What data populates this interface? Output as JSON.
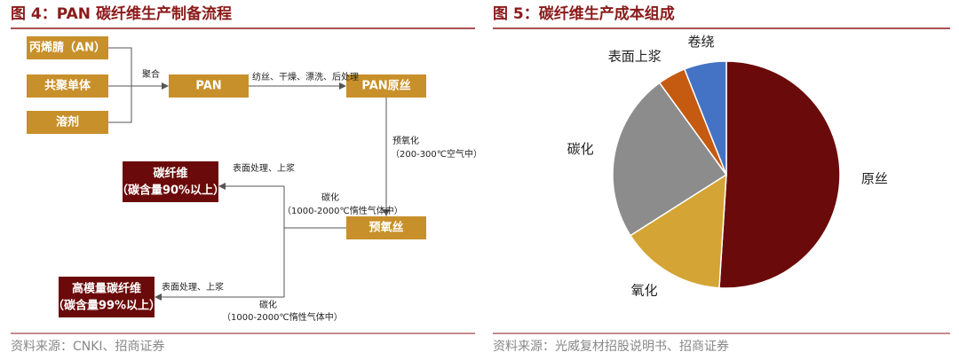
{
  "figure4": {
    "title": "图 4：PAN 碳纤维生产制备流程",
    "nodes": [
      "丙烯腈（AN）",
      "共聚单体",
      "溶剂",
      "PAN",
      "PAN原丝",
      "预氧丝"
    ],
    "products": [
      {
        "label": "碳纤维",
        "sublabel": "（碳含量90%以上）"
      },
      {
        "label": "高模量碳纤维",
        "sublabel": "（碳含量99%以上）"
      }
    ],
    "edge_labels": [
      "聚合",
      "纺丝、干燥、漂洗、后处理",
      "预氧化",
      "（200-300℃空气中）",
      "表面处理、上浆",
      "碳化",
      "（1000-2000℃惰性气体中）",
      "表面处理、上浆",
      "碳化",
      "（1000-2000℃惰性气体中）"
    ],
    "source": "资料来源：CNKI、招商证券"
  },
  "chart_data": {
    "type": "pie",
    "title": "图 5：碳纤维生产成本组成",
    "categories": [
      "原丝",
      "氧化",
      "碳化",
      "表面上浆",
      "卷绕"
    ],
    "values": [
      51,
      15,
      24,
      4,
      6
    ],
    "colors": [
      "#6b0a0a",
      "#d4a434",
      "#8c8c8c",
      "#c55a11",
      "#4472c4"
    ],
    "source": "资料来源：光威复材招股说明书、招商证券"
  }
}
